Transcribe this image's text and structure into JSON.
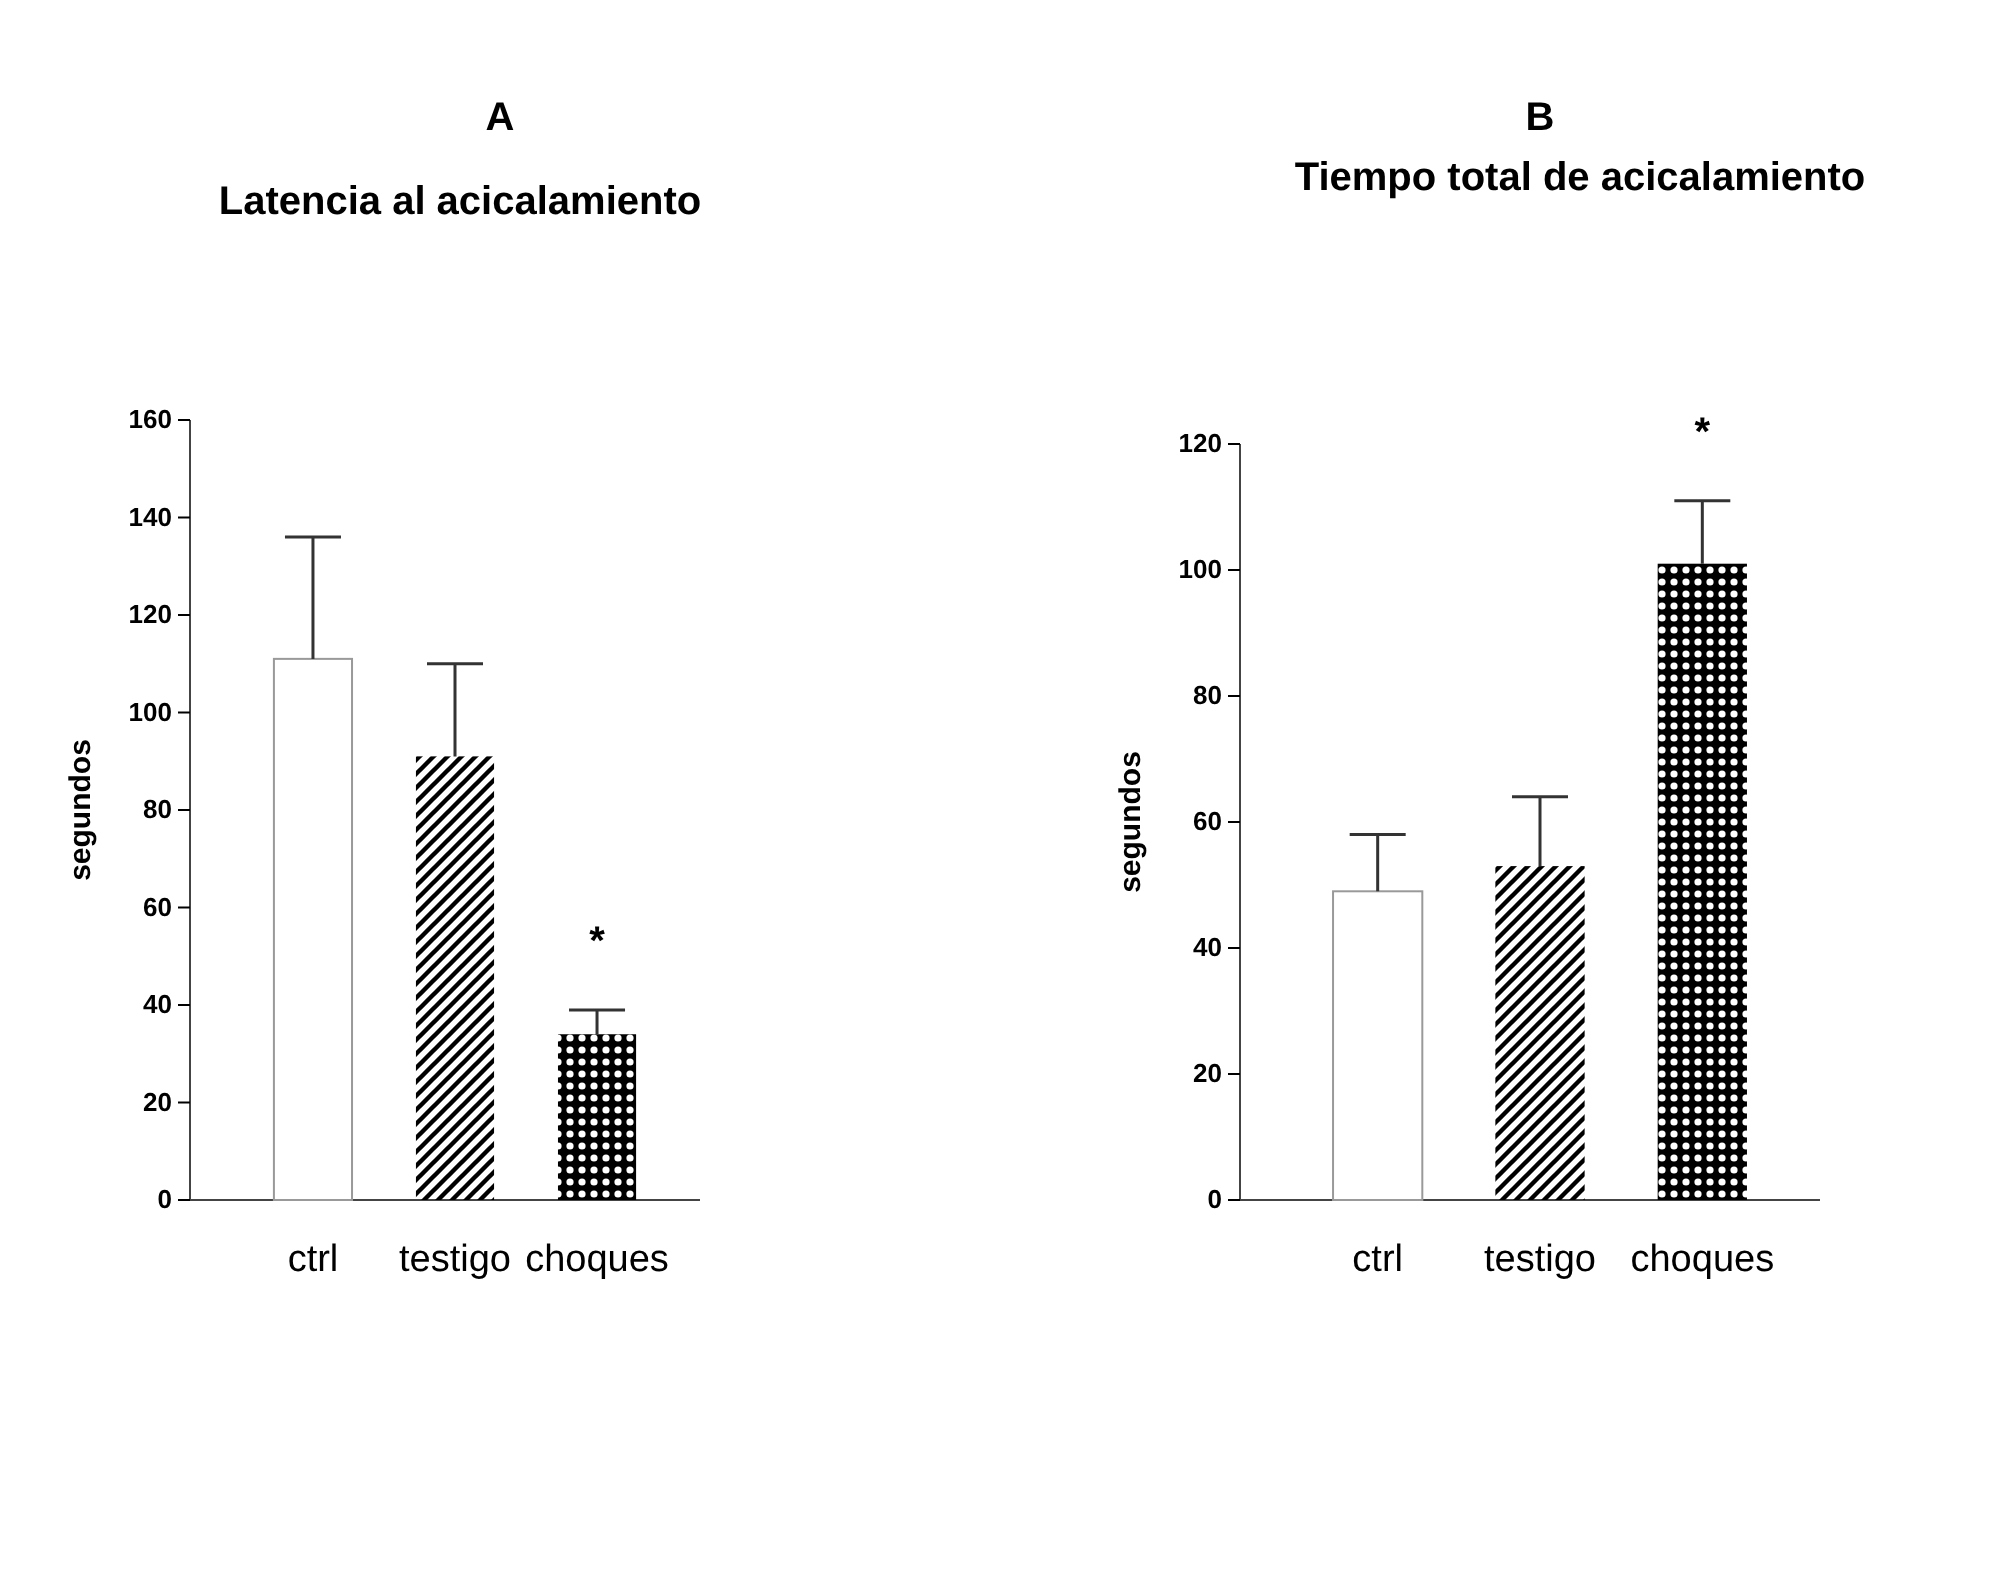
{
  "chart_data": [
    {
      "type": "bar",
      "title": "A",
      "subtitle": "Latencia al acicalamiento",
      "ylabel": "segundos",
      "categories": [
        "ctrl",
        "testigo",
        "choques"
      ],
      "values": [
        111,
        91,
        34
      ],
      "errors": [
        25,
        19,
        5
      ],
      "colors": [
        "#ffffff",
        "#000000",
        "#000000"
      ],
      "ylim": [
        0,
        160
      ],
      "yticks": [
        0,
        20,
        40,
        60,
        80,
        100,
        120,
        140,
        160
      ],
      "annotations": [
        "*"
      ]
    },
    {
      "type": "bar",
      "title": "B",
      "subtitle": "Tiempo total de acicalamiento",
      "ylabel": "segundos",
      "categories": [
        "ctrl",
        "testigo",
        "choques"
      ],
      "values": [
        49,
        53,
        101
      ],
      "errors": [
        9,
        11,
        10
      ],
      "colors": [
        "#ffffff",
        "#000000",
        "#000000"
      ],
      "ylim": [
        0,
        120
      ],
      "yticks": [
        0,
        20,
        40,
        60,
        80,
        100,
        120
      ],
      "annotations": [
        "*"
      ]
    }
  ]
}
